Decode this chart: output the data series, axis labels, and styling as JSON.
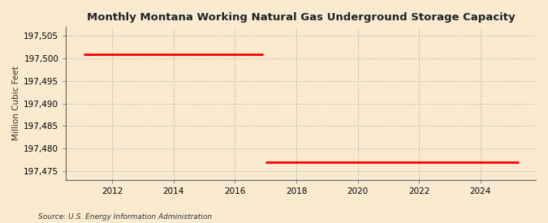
{
  "title": "Monthly Montana Working Natural Gas Underground Storage Capacity",
  "ylabel": "Million Cubic Feet",
  "source": "Source: U.S. Energy Information Administration",
  "background_color": "#faebd0",
  "plot_background_color": "#faebd0",
  "line_color": "#ff0000",
  "line_width": 2.0,
  "segments": [
    {
      "x_start": 2011.08,
      "x_end": 2016.92,
      "y": 197501.0
    },
    {
      "x_start": 2017.0,
      "x_end": 2025.25,
      "y": 197477.0
    }
  ],
  "xlim": [
    2010.5,
    2025.8
  ],
  "ylim": [
    197473,
    197507
  ],
  "yticks": [
    197475,
    197480,
    197485,
    197490,
    197495,
    197500,
    197505
  ],
  "xticks": [
    2012,
    2014,
    2016,
    2018,
    2020,
    2022,
    2024
  ],
  "grid_color": "#bbbbbb",
  "grid_linestyle": "--",
  "title_fontsize": 9.5,
  "ylabel_fontsize": 7.5,
  "tick_fontsize": 7.5,
  "source_fontsize": 6.5
}
